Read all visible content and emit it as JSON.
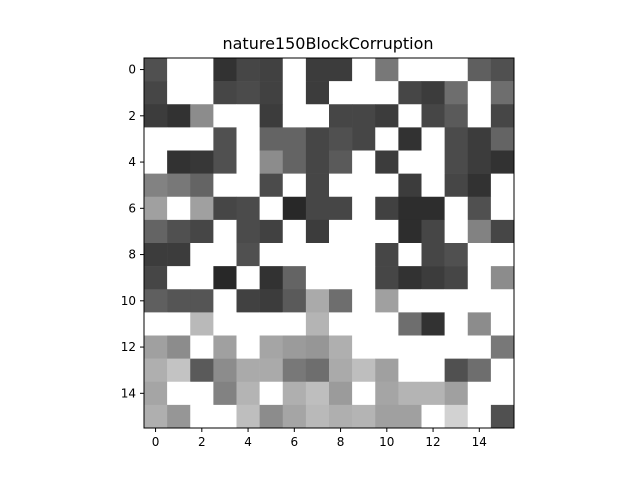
{
  "chart_data": {
    "type": "heatmap",
    "title": "nature150BlockCorruption",
    "xlabel": "",
    "ylabel": "",
    "colormap": "gray",
    "vmin": 0,
    "vmax": 255,
    "x_ticks": [
      0,
      2,
      4,
      6,
      8,
      10,
      12,
      14
    ],
    "y_ticks": [
      0,
      2,
      4,
      6,
      8,
      10,
      12,
      14
    ],
    "x_tick_labels": [
      "0",
      "2",
      "4",
      "6",
      "8",
      "10",
      "12",
      "14"
    ],
    "y_tick_labels": [
      "0",
      "2",
      "4",
      "6",
      "8",
      "10",
      "12",
      "14"
    ],
    "xlim": [
      -0.5,
      15.5
    ],
    "ylim": [
      15.5,
      -0.5
    ],
    "grid": false,
    "rows": 16,
    "cols": 16,
    "values": [
      [
        80,
        255,
        255,
        50,
        70,
        65,
        255,
        60,
        60,
        255,
        120,
        255,
        255,
        255,
        95,
        80
      ],
      [
        70,
        255,
        255,
        70,
        75,
        65,
        255,
        60,
        255,
        255,
        255,
        70,
        60,
        110,
        255,
        110
      ],
      [
        60,
        50,
        140,
        255,
        255,
        60,
        255,
        255,
        70,
        70,
        60,
        255,
        70,
        90,
        255,
        70
      ],
      [
        255,
        255,
        255,
        80,
        255,
        100,
        100,
        70,
        80,
        70,
        255,
        50,
        255,
        75,
        60,
        100
      ],
      [
        255,
        50,
        55,
        80,
        255,
        140,
        100,
        70,
        90,
        255,
        60,
        255,
        255,
        75,
        60,
        50
      ],
      [
        130,
        120,
        100,
        255,
        255,
        75,
        255,
        70,
        255,
        255,
        255,
        60,
        255,
        70,
        50,
        255
      ],
      [
        160,
        255,
        160,
        70,
        75,
        255,
        40,
        70,
        70,
        255,
        65,
        45,
        45,
        255,
        80,
        255
      ],
      [
        100,
        80,
        70,
        255,
        75,
        65,
        255,
        60,
        255,
        255,
        255,
        45,
        70,
        255,
        130,
        70
      ],
      [
        60,
        60,
        255,
        255,
        80,
        255,
        255,
        255,
        255,
        255,
        70,
        255,
        70,
        80,
        255,
        255
      ],
      [
        70,
        255,
        255,
        40,
        255,
        50,
        100,
        255,
        255,
        255,
        70,
        50,
        60,
        70,
        255,
        140
      ],
      [
        95,
        85,
        85,
        255,
        65,
        60,
        90,
        170,
        110,
        255,
        160,
        255,
        255,
        255,
        255,
        255
      ],
      [
        255,
        255,
        185,
        255,
        255,
        255,
        255,
        180,
        255,
        255,
        255,
        110,
        50,
        255,
        140,
        255
      ],
      [
        160,
        140,
        255,
        160,
        255,
        165,
        155,
        150,
        175,
        255,
        255,
        255,
        255,
        255,
        255,
        120
      ],
      [
        175,
        195,
        90,
        140,
        170,
        170,
        120,
        110,
        170,
        190,
        160,
        255,
        255,
        80,
        110,
        255
      ],
      [
        165,
        255,
        255,
        130,
        180,
        255,
        175,
        190,
        155,
        255,
        165,
        180,
        180,
        160,
        255,
        255
      ],
      [
        175,
        150,
        255,
        255,
        190,
        140,
        165,
        185,
        175,
        180,
        160,
        160,
        255,
        210,
        255,
        80
      ]
    ]
  }
}
